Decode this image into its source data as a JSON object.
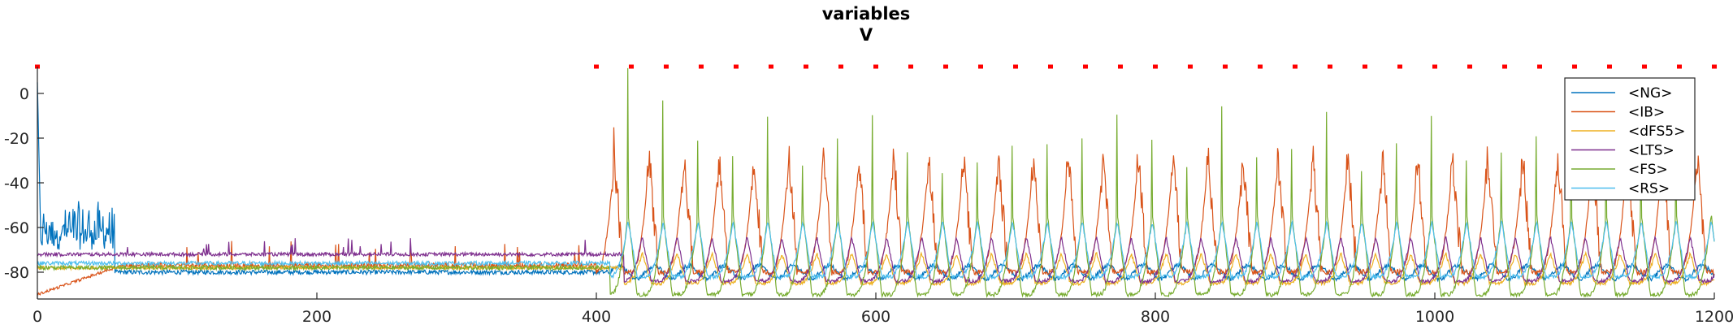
{
  "chart_data": {
    "type": "line",
    "title": "variables",
    "subtitle": "V",
    "xlabel": "",
    "ylabel": "",
    "xlim": [
      0,
      1200
    ],
    "ylim": [
      -92,
      12
    ],
    "x_ticks": [
      0,
      200,
      400,
      600,
      800,
      1000,
      1200
    ],
    "x_tick_labels": [
      "0",
      "200",
      "400",
      "600",
      "800",
      "1000",
      "1200"
    ],
    "y_ticks": [
      0,
      -20,
      -40,
      -60,
      -80
    ],
    "y_tick_labels": [
      "0",
      "-20",
      "-40",
      "-60",
      "-80"
    ],
    "grid": false,
    "legend_position": "top-right",
    "series": [
      {
        "name": "<NG>",
        "color": "#0072BD",
        "baseline": -80,
        "spike_peak": 5,
        "noise": 1.0,
        "early_burst": {
          "from": 0,
          "to": 55,
          "low": -70,
          "high": -48
        },
        "rhythm": {
          "from": 410,
          "to": 1200,
          "period": 25,
          "amp": 3
        }
      },
      {
        "name": "<IB>",
        "color": "#D95319",
        "baseline": -77,
        "start_value": -90,
        "noise": 1.2,
        "sparse_spikes": {
          "from": 60,
          "to": 400,
          "height": -66
        },
        "rhythm": {
          "from": 400,
          "to": 1200,
          "period": 25,
          "low": -80,
          "high": -30,
          "first_peak": -20
        }
      },
      {
        "name": "<dFS5>",
        "color": "#EDB120",
        "baseline": -78,
        "noise": 0.8,
        "rhythm": {
          "from": 420,
          "to": 1200,
          "period": 25,
          "low": -85,
          "high": -72
        }
      },
      {
        "name": "<LTS>",
        "color": "#7E2F8E",
        "baseline": -72,
        "noise": 0.8,
        "sparse_spikes": {
          "from": 60,
          "to": 400,
          "height": -64
        },
        "rhythm": {
          "from": 420,
          "to": 1200,
          "period": 25,
          "low": -84,
          "high": -65
        }
      },
      {
        "name": "<FS>",
        "color": "#77AC30",
        "baseline": -78,
        "noise": 0.9,
        "rhythm": {
          "from": 410,
          "to": 1200,
          "period": 25,
          "low": -90,
          "high": -55,
          "peaks": [
            12,
            -4,
            -22,
            -28,
            -10,
            -33,
            -20,
            -10,
            -26,
            -36,
            -30,
            -23,
            -22,
            -20,
            -10,
            -20,
            -33,
            -6,
            -28,
            -25,
            -8,
            -35,
            -22,
            -10,
            -30,
            -26,
            -20,
            -10,
            -22,
            -28,
            -30
          ]
        }
      },
      {
        "name": "<RS>",
        "color": "#4DBEEE",
        "baseline": -76,
        "noise": 0.9,
        "rhythm": {
          "from": 410,
          "to": 1200,
          "period": 25,
          "low": -82,
          "high": -58
        }
      }
    ],
    "markers": {
      "color": "#FF0000",
      "y": 12,
      "x": [
        0,
        400,
        425,
        450,
        475,
        500,
        525,
        550,
        575,
        600,
        625,
        650,
        675,
        700,
        725,
        750,
        775,
        800,
        825,
        850,
        875,
        900,
        925,
        950,
        975,
        1000,
        1025,
        1050,
        1075,
        1100,
        1125,
        1150,
        1175,
        1200
      ]
    }
  }
}
